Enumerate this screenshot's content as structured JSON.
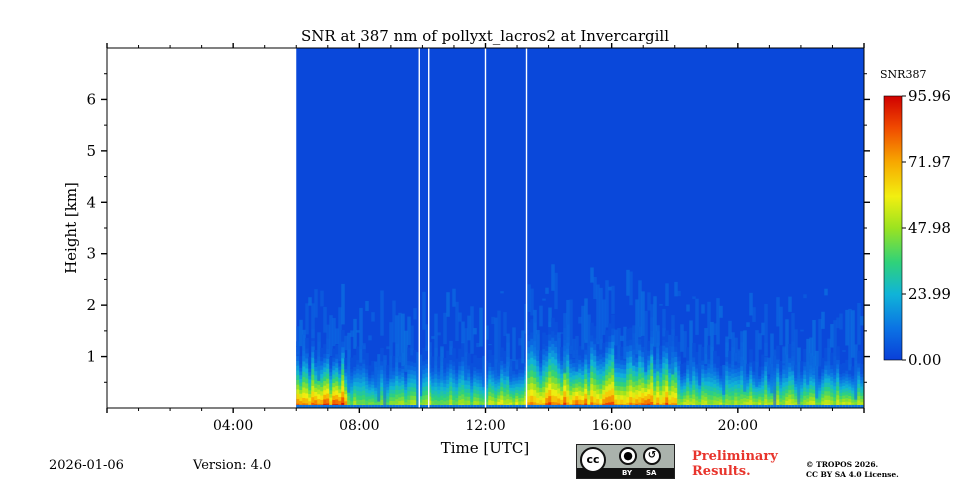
{
  "chart_data": {
    "type": "heatmap",
    "title": "SNR at 387 nm of pollyxt_lacros2 at Invercargill",
    "xlabel": "Time [UTC]",
    "ylabel": "Height [km]",
    "xlim_hours": [
      0,
      24
    ],
    "ylim_km": [
      0,
      7
    ],
    "x_ticks": [
      {
        "hour": 4,
        "label": "04:00"
      },
      {
        "hour": 8,
        "label": "08:00"
      },
      {
        "hour": 12,
        "label": "12:00"
      },
      {
        "hour": 16,
        "label": "16:00"
      },
      {
        "hour": 20,
        "label": "20:00"
      }
    ],
    "y_ticks": [
      {
        "km": 1,
        "label": "1"
      },
      {
        "km": 2,
        "label": "2"
      },
      {
        "km": 3,
        "label": "3"
      },
      {
        "km": 4,
        "label": "4"
      },
      {
        "km": 5,
        "label": "5"
      },
      {
        "km": 6,
        "label": "6"
      }
    ],
    "data_start_hour": 6.0,
    "data_gaps_hours": [
      9.9,
      10.2,
      12.0,
      13.3
    ],
    "colorbar": {
      "label": "SNR387",
      "min": 0.0,
      "max": 95.96,
      "tick_labels": [
        "95.96",
        "71.97",
        "47.98",
        "23.99",
        "0.00"
      ]
    },
    "snr_profile_summary": [
      {
        "hour_range": [
          6.0,
          7.6
        ],
        "near_surface_snr": 90,
        "boundary_layer_top_km": 1.2
      },
      {
        "hour_range": [
          7.6,
          9.9
        ],
        "near_surface_snr": 55,
        "boundary_layer_top_km": 1.0
      },
      {
        "hour_range": [
          10.2,
          12.0
        ],
        "near_surface_snr": 55,
        "boundary_layer_top_km": 1.0
      },
      {
        "hour_range": [
          12.0,
          13.3
        ],
        "near_surface_snr": 65,
        "boundary_layer_top_km": 1.0
      },
      {
        "hour_range": [
          13.3,
          18.0
        ],
        "near_surface_snr": 85,
        "boundary_layer_top_km": 1.4
      },
      {
        "hour_range": [
          18.0,
          24.0
        ],
        "near_surface_snr": 60,
        "boundary_layer_top_km": 1.0
      }
    ]
  },
  "footer": {
    "date": "2026-01-06",
    "version": "Version: 4.0",
    "license_badge": [
      "cc",
      "BY",
      "SA"
    ],
    "preliminary_line1": "Preliminary",
    "preliminary_line2": "Results.",
    "copyright_line1": "© TROPOS 2026.",
    "copyright_line2": "CC BY SA 4.0 License."
  },
  "colors": {
    "low": "#0a3fd8",
    "high": "#d00000"
  }
}
